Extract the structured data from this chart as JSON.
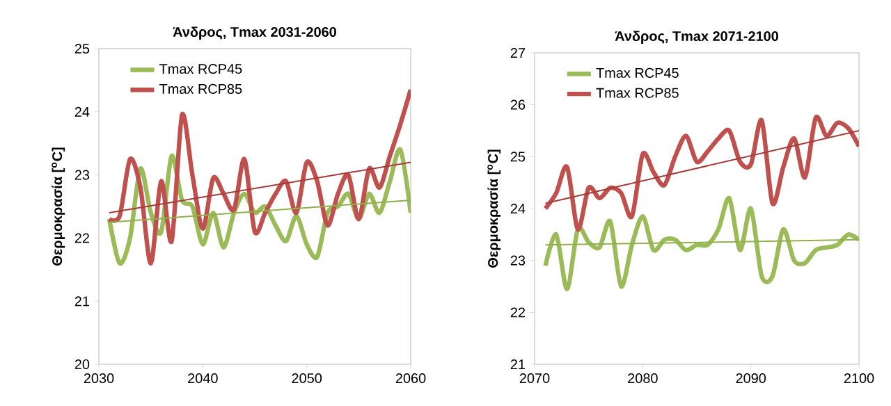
{
  "chart_data": [
    {
      "type": "line",
      "title": "Άνδρος, Tmax 2031-2060",
      "ylabel": "Θερμοκρασία [$^{o}$C]",
      "x": [
        2031,
        2032,
        2033,
        2034,
        2035,
        2036,
        2037,
        2038,
        2039,
        2040,
        2041,
        2042,
        2043,
        2044,
        2045,
        2046,
        2047,
        2048,
        2049,
        2050,
        2051,
        2052,
        2053,
        2054,
        2055,
        2056,
        2057,
        2058,
        2059,
        2060
      ],
      "xlim": [
        2030,
        2060
      ],
      "xticks": [
        2030,
        2040,
        2050,
        2060
      ],
      "ylim": [
        20,
        25
      ],
      "yticks": [
        20,
        21,
        22,
        23,
        24,
        25
      ],
      "legend": "top left",
      "series": [
        {
          "name": "Tmax RCP45",
          "color": "#9bbb59",
          "values": [
            22.3,
            21.6,
            22.0,
            23.1,
            22.4,
            22.1,
            23.3,
            22.6,
            22.5,
            21.9,
            22.4,
            21.85,
            22.4,
            22.7,
            22.4,
            22.5,
            22.2,
            21.95,
            22.35,
            21.9,
            21.7,
            22.4,
            22.5,
            22.7,
            22.3,
            22.7,
            22.4,
            22.9,
            23.4,
            22.4
          ]
        },
        {
          "name": "Tmax RCP85",
          "color": "#c0504d",
          "values": [
            22.3,
            22.35,
            23.25,
            22.8,
            21.6,
            22.9,
            21.95,
            23.95,
            23.0,
            22.15,
            22.95,
            22.7,
            22.45,
            23.25,
            22.1,
            22.4,
            22.7,
            22.9,
            22.4,
            23.2,
            22.9,
            22.2,
            22.7,
            23.0,
            22.3,
            23.1,
            22.8,
            23.3,
            23.8,
            24.35
          ]
        },
        {
          "type": "line",
          "color": "#8fb04a",
          "x": [
            2031,
            2060
          ],
          "values": [
            22.25,
            22.6
          ]
        },
        {
          "type": "line",
          "color": "#a33b39",
          "x": [
            2031,
            2060
          ],
          "values": [
            22.4,
            23.2
          ]
        }
      ]
    },
    {
      "type": "line",
      "title": "Άνδρος, Tmax 2071-2100",
      "ylabel": "Θερμοκρασία [$^{o}$C]",
      "x": [
        2071,
        2072,
        2073,
        2074,
        2075,
        2076,
        2077,
        2078,
        2079,
        2080,
        2081,
        2082,
        2083,
        2084,
        2085,
        2086,
        2087,
        2088,
        2089,
        2090,
        2091,
        2092,
        2093,
        2094,
        2095,
        2096,
        2097,
        2098,
        2099,
        2100
      ],
      "xlim": [
        2070,
        2100
      ],
      "xticks": [
        2070,
        2080,
        2090,
        2100
      ],
      "ylim": [
        21,
        27
      ],
      "yticks": [
        21,
        22,
        23,
        24,
        25,
        26,
        27
      ],
      "legend": "top left",
      "series": [
        {
          "name": "Tmax RCP45",
          "color": "#9bbb59",
          "values": [
            22.9,
            23.5,
            22.45,
            23.6,
            23.35,
            23.25,
            23.75,
            22.5,
            23.3,
            23.85,
            23.2,
            23.4,
            23.4,
            23.2,
            23.3,
            23.3,
            23.6,
            24.2,
            23.2,
            24.0,
            22.7,
            22.7,
            23.6,
            23.0,
            22.95,
            23.2,
            23.25,
            23.3,
            23.5,
            23.4
          ]
        },
        {
          "name": "Tmax RCP85",
          "color": "#c0504d",
          "values": [
            24.0,
            24.3,
            24.8,
            23.6,
            24.4,
            24.2,
            24.4,
            24.3,
            23.85,
            25.05,
            24.7,
            24.45,
            25.0,
            25.4,
            24.9,
            25.1,
            25.35,
            25.5,
            24.9,
            24.85,
            25.7,
            24.1,
            24.8,
            25.35,
            24.6,
            25.75,
            25.4,
            25.65,
            25.55,
            25.2
          ]
        },
        {
          "type": "line",
          "color": "#8fb04a",
          "x": [
            2071,
            2100
          ],
          "values": [
            23.3,
            23.4
          ]
        },
        {
          "type": "line",
          "color": "#a33b39",
          "x": [
            2071,
            2100
          ],
          "values": [
            24.1,
            25.5
          ]
        }
      ]
    }
  ]
}
